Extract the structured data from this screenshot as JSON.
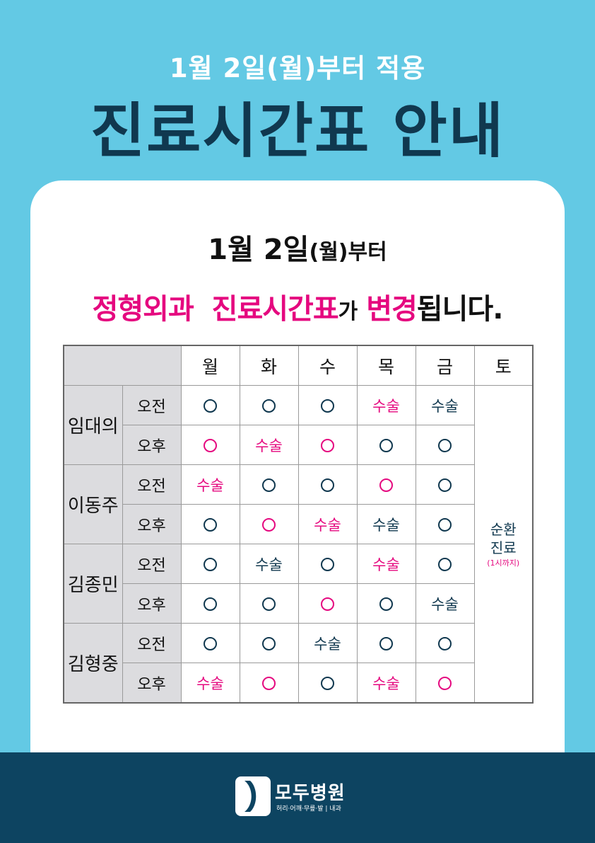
{
  "header": {
    "subtitle": "1월 2일(월)부터 적용",
    "title": "진료시간표 안내"
  },
  "notice": {
    "line1_date": "1월 2일",
    "line1_paren": "(월)",
    "line1_suffix": "부터",
    "line2_dept": "정형외과",
    "line2_schedule": "진료시간표",
    "line2_particle": "가",
    "line2_change": "변경",
    "line2_end": "됩니다."
  },
  "schedule": {
    "days": [
      "월",
      "화",
      "수",
      "목",
      "금",
      "토"
    ],
    "doctors": [
      {
        "name": "임대의",
        "rows": [
          {
            "slot": "오전",
            "cells": [
              {
                "type": "circle",
                "color": "navy"
              },
              {
                "type": "circle",
                "color": "navy"
              },
              {
                "type": "circle",
                "color": "navy"
              },
              {
                "type": "text",
                "text": "수술",
                "color": "magenta"
              },
              {
                "type": "text",
                "text": "수술",
                "color": "navy"
              }
            ]
          },
          {
            "slot": "오후",
            "cells": [
              {
                "type": "circle",
                "color": "magenta"
              },
              {
                "type": "text",
                "text": "수술",
                "color": "magenta"
              },
              {
                "type": "circle",
                "color": "magenta"
              },
              {
                "type": "circle",
                "color": "navy"
              },
              {
                "type": "circle",
                "color": "navy"
              }
            ]
          }
        ]
      },
      {
        "name": "이동주",
        "rows": [
          {
            "slot": "오전",
            "cells": [
              {
                "type": "text",
                "text": "수술",
                "color": "magenta"
              },
              {
                "type": "circle",
                "color": "navy"
              },
              {
                "type": "circle",
                "color": "navy"
              },
              {
                "type": "circle",
                "color": "magenta"
              },
              {
                "type": "circle",
                "color": "navy"
              }
            ]
          },
          {
            "slot": "오후",
            "cells": [
              {
                "type": "circle",
                "color": "navy"
              },
              {
                "type": "circle",
                "color": "magenta"
              },
              {
                "type": "text",
                "text": "수술",
                "color": "magenta"
              },
              {
                "type": "text",
                "text": "수술",
                "color": "navy"
              },
              {
                "type": "circle",
                "color": "navy"
              }
            ]
          }
        ]
      },
      {
        "name": "김종민",
        "rows": [
          {
            "slot": "오전",
            "cells": [
              {
                "type": "circle",
                "color": "navy"
              },
              {
                "type": "text",
                "text": "수술",
                "color": "navy"
              },
              {
                "type": "circle",
                "color": "navy"
              },
              {
                "type": "text",
                "text": "수술",
                "color": "magenta"
              },
              {
                "type": "circle",
                "color": "navy"
              }
            ]
          },
          {
            "slot": "오후",
            "cells": [
              {
                "type": "circle",
                "color": "navy"
              },
              {
                "type": "circle",
                "color": "navy"
              },
              {
                "type": "circle",
                "color": "magenta"
              },
              {
                "type": "circle",
                "color": "navy"
              },
              {
                "type": "text",
                "text": "수술",
                "color": "navy"
              }
            ]
          }
        ]
      },
      {
        "name": "김형중",
        "rows": [
          {
            "slot": "오전",
            "cells": [
              {
                "type": "circle",
                "color": "navy"
              },
              {
                "type": "circle",
                "color": "navy"
              },
              {
                "type": "text",
                "text": "수술",
                "color": "navy"
              },
              {
                "type": "circle",
                "color": "navy"
              },
              {
                "type": "circle",
                "color": "navy"
              }
            ]
          },
          {
            "slot": "오후",
            "cells": [
              {
                "type": "text",
                "text": "수술",
                "color": "magenta"
              },
              {
                "type": "circle",
                "color": "magenta"
              },
              {
                "type": "circle",
                "color": "navy"
              },
              {
                "type": "text",
                "text": "수술",
                "color": "magenta"
              },
              {
                "type": "circle",
                "color": "magenta"
              }
            ]
          }
        ]
      }
    ],
    "saturday": {
      "line1": "순환",
      "line2": "진료",
      "note": "(1시까지)"
    }
  },
  "footer": {
    "logo_name": "모두병원",
    "logo_tagline": "허리·어깨·무릎·발 | 내과"
  },
  "colors": {
    "background": "#63c9e4",
    "navy": "#10384f",
    "magenta": "#e5087f",
    "footer": "#0d4461",
    "header_cell": "#dcdcdf"
  }
}
